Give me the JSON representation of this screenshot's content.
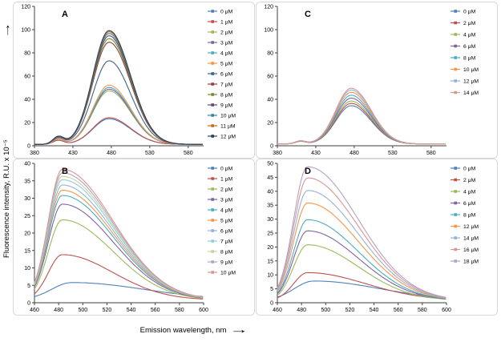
{
  "figure": {
    "ylabel": "Fluorescence intensity, R.U. x 10⁻⁵",
    "xlabel": "Emission wavelength, nm",
    "axis_arrow": "→",
    "concentration_unit": "μM"
  },
  "chart_data": [
    {
      "type": "line",
      "title": "A",
      "position": "top-left",
      "xlabel": "Emission wavelength, nm",
      "ylabel": "Fluorescence intensity, R.U. x 10⁻⁵",
      "xlim": [
        380,
        600
      ],
      "ylim": [
        0,
        120
      ],
      "xticks": [
        380,
        430,
        480,
        530,
        580
      ],
      "yticks": [
        0,
        20,
        40,
        60,
        80,
        100,
        120
      ],
      "legend_position": "right",
      "grid": false,
      "peak_nm": 477,
      "shape": {
        "mu": 477,
        "sl": 21,
        "sr": 28,
        "base": 1.2,
        "sh_mu": 411,
        "sh_s": 7,
        "sh_f": 0.04,
        "sh_c": 2.5
      },
      "series": [
        {
          "name": "0 μM",
          "peak": 22,
          "color": "#4F81BD"
        },
        {
          "name": "1 μM",
          "peak": 23,
          "color": "#C0504D"
        },
        {
          "name": "2 μM",
          "peak": 46,
          "color": "#9BBB59"
        },
        {
          "name": "3 μM",
          "peak": 47.5,
          "color": "#8064A2"
        },
        {
          "name": "4 μM",
          "peak": 49,
          "color": "#4BACC6"
        },
        {
          "name": "5 μM",
          "peak": 51,
          "color": "#F79646"
        },
        {
          "name": "6 μM",
          "peak": 72,
          "color": "#3A6293"
        },
        {
          "name": "7 μM",
          "peak": 88,
          "color": "#91403D"
        },
        {
          "name": "8 μM",
          "peak": 91,
          "color": "#748C33"
        },
        {
          "name": "9 μM",
          "peak": 93.5,
          "color": "#60487A"
        },
        {
          "name": "10 μM",
          "peak": 95.5,
          "color": "#38829C"
        },
        {
          "name": "11 μM",
          "peak": 97,
          "color": "#C96B12"
        },
        {
          "name": "12 μM",
          "peak": 98,
          "color": "#27415F"
        }
      ]
    },
    {
      "type": "line",
      "title": "C",
      "position": "top-right",
      "xlabel": "Emission wavelength, nm",
      "ylabel": "Fluorescence intensity, R.U. x 10⁻⁵",
      "xlim": [
        380,
        600
      ],
      "ylim": [
        0,
        120
      ],
      "xticks": [
        380,
        430,
        480,
        530,
        580
      ],
      "yticks": [
        0,
        20,
        40,
        60,
        80,
        100,
        120
      ],
      "legend_position": "right",
      "grid": false,
      "peak_nm": 476,
      "shape": {
        "mu": 476,
        "sl": 20,
        "sr": 26,
        "base": 1.5,
        "sh_mu": 410,
        "sh_s": 7,
        "sh_f": 0.03,
        "sh_c": 1.2
      },
      "series": [
        {
          "name": "0 μM",
          "peak": 33,
          "color": "#4F81BD"
        },
        {
          "name": "2 μM",
          "peak": 35,
          "color": "#C0504D"
        },
        {
          "name": "4 μM",
          "peak": 37,
          "color": "#9BBB59"
        },
        {
          "name": "6 μM",
          "peak": 39.5,
          "color": "#8064A2"
        },
        {
          "name": "8 μM",
          "peak": 42,
          "color": "#4BACC6"
        },
        {
          "name": "10 μM",
          "peak": 44.5,
          "color": "#F79646"
        },
        {
          "name": "12 μM",
          "peak": 46.5,
          "color": "#95B3D7"
        },
        {
          "name": "14 μM",
          "peak": 48,
          "color": "#D99694"
        }
      ]
    },
    {
      "type": "line",
      "title": "B",
      "position": "bottom-left",
      "xlabel": "Emission wavelength, nm",
      "ylabel": "Fluorescence intensity, R.U. x 10⁻⁵",
      "xlim": [
        460,
        600
      ],
      "ylim": [
        0,
        40
      ],
      "xticks": [
        460,
        480,
        500,
        520,
        540,
        560,
        580,
        600
      ],
      "yticks": [
        0,
        5,
        10,
        15,
        20,
        25,
        30,
        35,
        40
      ],
      "legend_position": "right",
      "grid": false,
      "peak_nm": 483,
      "shape": {
        "mu": 483,
        "sl": 11.5,
        "sr": 42,
        "base": 0.8
      },
      "series": [
        {
          "name": "0 μM",
          "peak": 5,
          "color": "#4F81BD",
          "shape": {
            "mu": 491,
            "sl": 17,
            "sr": 60
          }
        },
        {
          "name": "1 μM",
          "peak": 13,
          "color": "#C0504D"
        },
        {
          "name": "2 μM",
          "peak": 23,
          "color": "#9BBB59"
        },
        {
          "name": "3 μM",
          "peak": 27.5,
          "color": "#8064A2"
        },
        {
          "name": "4 μM",
          "peak": 30,
          "color": "#4BACC6"
        },
        {
          "name": "5 μM",
          "peak": 31.5,
          "color": "#F79646"
        },
        {
          "name": "6 μM",
          "peak": 33,
          "color": "#95B3D7"
        },
        {
          "name": "7 μM",
          "peak": 34.5,
          "color": "#93CDDD"
        },
        {
          "name": "8 μM",
          "peak": 35.5,
          "color": "#C3D69B"
        },
        {
          "name": "9 μM",
          "peak": 36.5,
          "color": "#B3A2C7"
        },
        {
          "name": "10 μM",
          "peak": 37.5,
          "color": "#D99694"
        }
      ]
    },
    {
      "type": "line",
      "title": "D",
      "position": "bottom-right",
      "xlabel": "Emission wavelength, nm",
      "ylabel": "Fluorescence intensity, R.U. x 10⁻⁵",
      "xlim": [
        460,
        600
      ],
      "ylim": [
        0,
        50
      ],
      "xticks": [
        460,
        480,
        500,
        520,
        540,
        560,
        580,
        600
      ],
      "yticks": [
        0,
        5,
        10,
        15,
        20,
        25,
        30,
        35,
        40,
        45,
        50
      ],
      "legend_position": "right",
      "grid": false,
      "peak_nm": 485,
      "shape": {
        "mu": 485,
        "sl": 11.5,
        "sr": 42,
        "base": 0.8
      },
      "series": [
        {
          "name": "0 μM",
          "peak": 7,
          "color": "#4F81BD",
          "shape": {
            "mu": 490,
            "sl": 16,
            "sr": 55
          }
        },
        {
          "name": "2 μM",
          "peak": 10,
          "color": "#C0504D",
          "shape": {
            "sr": 48
          }
        },
        {
          "name": "4 μM",
          "peak": 20,
          "color": "#9BBB59"
        },
        {
          "name": "6 μM",
          "peak": 25,
          "color": "#8064A2"
        },
        {
          "name": "8 μM",
          "peak": 29,
          "color": "#4BACC6"
        },
        {
          "name": "12 μM",
          "peak": 35,
          "color": "#F79646"
        },
        {
          "name": "14 μM",
          "peak": 39.5,
          "color": "#95B3D7"
        },
        {
          "name": "16 μM",
          "peak": 44,
          "color": "#D99694"
        },
        {
          "name": "18 μM",
          "peak": 48,
          "color": "#B3A2C7"
        }
      ]
    }
  ]
}
